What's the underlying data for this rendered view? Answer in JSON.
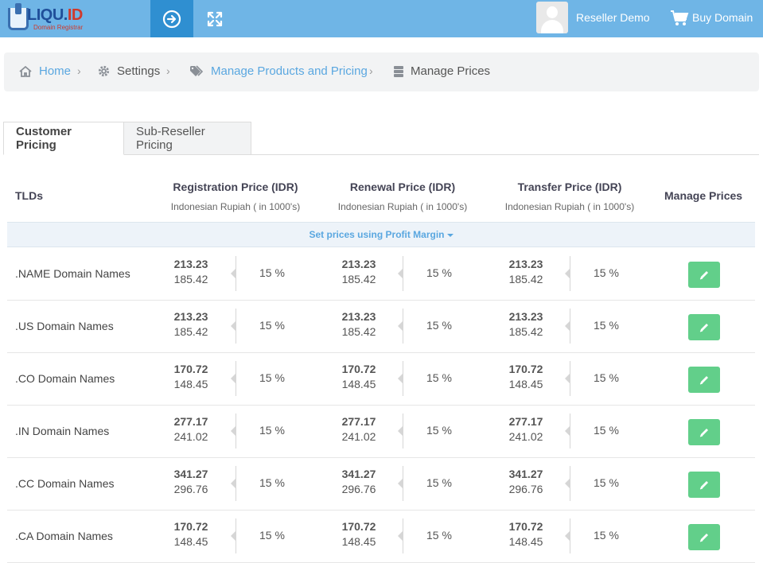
{
  "app": {
    "logo_text": "LIQU.ID",
    "logo_tagline": "Domain Registrar",
    "user_name": "Reseller Demo",
    "buy_label": "Buy Domain",
    "accent": "#6fb5e6",
    "accent_dark": "#2f8fd1",
    "edit_color": "#62cf8a"
  },
  "breadcrumb": {
    "home": "Home",
    "settings": "Settings",
    "products": "Manage Products and Pricing",
    "current": "Manage Prices"
  },
  "tabs": {
    "customer": "Customer Pricing",
    "subreseller": "Sub-Reseller Pricing"
  },
  "table": {
    "col_tld": "TLDs",
    "col_reg": "Registration Price (IDR)",
    "col_ren": "Renewal Price (IDR)",
    "col_tra": "Transfer Price (IDR)",
    "col_manage": "Manage Prices",
    "currency_note": "Indonesian Rupiah ( in 1000's)",
    "margin_link": "Set prices using Profit Margin",
    "rows": [
      {
        "tld": ".NAME Domain Names",
        "price": "213.23",
        "cost": "185.42",
        "margin": "15 %"
      },
      {
        "tld": ".US Domain Names",
        "price": "213.23",
        "cost": "185.42",
        "margin": "15 %"
      },
      {
        "tld": ".CO Domain Names",
        "price": "170.72",
        "cost": "148.45",
        "margin": "15 %"
      },
      {
        "tld": ".IN Domain Names",
        "price": "277.17",
        "cost": "241.02",
        "margin": "15 %"
      },
      {
        "tld": ".CC Domain Names",
        "price": "341.27",
        "cost": "296.76",
        "margin": "15 %"
      },
      {
        "tld": ".CA Domain Names",
        "price": "170.72",
        "cost": "148.45",
        "margin": "15 %"
      }
    ]
  }
}
